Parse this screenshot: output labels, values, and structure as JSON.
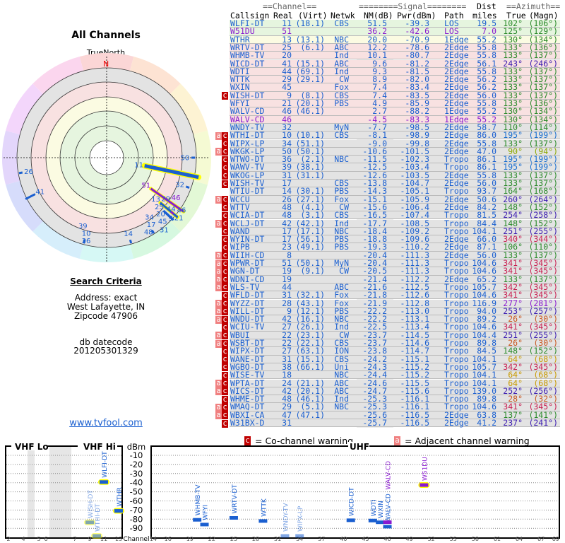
{
  "left": {
    "title": "All Channels",
    "north_label": "TrueNorth",
    "north_marker": "N",
    "criteria_title": "Search Criteria",
    "address": "Address: exact",
    "city": "West Lafayette, IN",
    "zipcode": "Zipcode 47906",
    "db_label": "db datecode",
    "db_value": "201205301329",
    "link": "www.tvfool.com"
  },
  "table": {
    "group_headers": {
      "channel": "==Channel==",
      "signal": "========Signal========",
      "dist": "Dist",
      "azimuth": "==Azimuth=="
    },
    "headers": {
      "callsign": "Callsign",
      "real": "Real",
      "virt": "(Virt)",
      "netwk": "Netwk",
      "nm": "NM(dB)",
      "pwr": "Pwr(dBm)",
      "path": "Path",
      "dist": "miles",
      "true": "True",
      "magn": "(Magn)"
    },
    "colors": {
      "text": "#1a5fd0",
      "analog": "#8a1ad0",
      "green": "#e6f5df",
      "yellow": "#fbfbe2",
      "pink": "#f8e1e1",
      "gray": "#e3e3e3",
      "co_flag": "#c00000",
      "adj_flag": "#f08080"
    },
    "rows": [
      [
        "",
        "WLFI-DT",
        "11",
        "(18.1)",
        "CBS",
        "51.5",
        "-39.3",
        "LOS",
        "19.5",
        "102°",
        "(106°)",
        "green",
        0
      ],
      [
        "",
        "W51DU",
        "51",
        "",
        "",
        "36.2",
        "-42.6",
        "LOS",
        "7.0",
        "125°",
        "(129°)",
        "green",
        1
      ],
      [
        "",
        "WTHR",
        "13",
        "(13.1)",
        "NBC",
        "20.0",
        "-70.9",
        "1Edge",
        "55.2",
        "130°",
        "(134°)",
        "yellow",
        0
      ],
      [
        "",
        "WRTV-DT",
        "25",
        "(6.1)",
        "ABC",
        "12.2",
        "-78.6",
        "2Edge",
        "55.8",
        "133°",
        "(136°)",
        "pink",
        0
      ],
      [
        "",
        "WHMB-TV",
        "20",
        "",
        "Ind",
        "10.1",
        "-80.7",
        "2Edge",
        "55.8",
        "133°",
        "(137°)",
        "pink",
        0
      ],
      [
        "",
        "WICD-DT",
        "41",
        "(15.1)",
        "ABC",
        "9.6",
        "-81.2",
        "2Edge",
        "56.1",
        "243°",
        "(246°)",
        "pink",
        0
      ],
      [
        "",
        "WDTI",
        "44",
        "(69.1)",
        "Ind",
        "9.3",
        "-81.5",
        "2Edge",
        "55.8",
        "133°",
        "(137°)",
        "pink",
        0
      ],
      [
        "",
        "WTTK",
        "29",
        "(29.1)",
        "CW",
        "8.9",
        "-82.0",
        "2Edge",
        "56.2",
        "133°",
        "(137°)",
        "pink",
        0
      ],
      [
        "",
        "WXIN",
        "45",
        "",
        "Fox",
        "7.4",
        "-83.4",
        "2Edge",
        "56.2",
        "133°",
        "(137°)",
        "pink",
        0
      ],
      [
        "c",
        "WISH-DT",
        "9",
        "(8.1)",
        "CBS",
        "7.4",
        "-83.5",
        "2Edge",
        "56.0",
        "133°",
        "(137°)",
        "pink",
        0
      ],
      [
        "",
        "WFYI",
        "21",
        "(20.1)",
        "PBS",
        "4.9",
        "-85.9",
        "2Edge",
        "55.8",
        "133°",
        "(136°)",
        "pink",
        0
      ],
      [
        "",
        "WALV-CD",
        "46",
        "(46.1)",
        "",
        "2.7",
        "-88.2",
        "1Edge",
        "55.2",
        "130°",
        "(134°)",
        "pink",
        0
      ],
      [
        "",
        "WALV-CD",
        "46",
        "",
        "",
        "-4.5",
        "-83.3",
        "1Edge",
        "55.2",
        "130°",
        "(134°)",
        "pink",
        1
      ],
      [
        "",
        "WNDY-TV",
        "32",
        "",
        "MyN",
        "-7.7",
        "-98.5",
        "2Edge",
        "58.7",
        "110°",
        "(114°)",
        "gray",
        0
      ],
      [
        "ac",
        "WTHI-DT",
        "10",
        "(10.1)",
        "CBS",
        "-8.1",
        "-98.9",
        "2Edge",
        "86.0",
        "195°",
        "(199°)",
        "gray",
        0
      ],
      [
        "c",
        "WIPX-LP",
        "34",
        "(51.1)",
        "",
        "-9.0",
        "-99.8",
        "2Edge",
        "55.8",
        "133°",
        "(137°)",
        "gray",
        0
      ],
      [
        "ac",
        "WKGK-LP",
        "50",
        "(50.1)",
        "",
        "-10.6",
        "-101.5",
        "2Edge",
        "47.0",
        "90°",
        "(94°)",
        "gray",
        0
      ],
      [
        "c",
        "WTWO-DT",
        "36",
        "(2.1)",
        "NBC",
        "-11.5",
        "-102.3",
        "Tropo",
        "86.1",
        "195°",
        "(199°)",
        "gray",
        0
      ],
      [
        "c",
        "WAWV-TV",
        "39",
        "(38.1)",
        "",
        "-12.5",
        "-103.4",
        "Tropo",
        "86.1",
        "195°",
        "(199°)",
        "gray",
        0
      ],
      [
        "c",
        "WKOG-LP",
        "31",
        "(31.1)",
        "",
        "-12.6",
        "-103.5",
        "2Edge",
        "55.8",
        "133°",
        "(137°)",
        "gray",
        0
      ],
      [
        "c",
        "WISH-TV",
        "17",
        "",
        "CBS",
        "-13.8",
        "-104.7",
        "2Edge",
        "56.0",
        "133°",
        "(137°)",
        "gray",
        0
      ],
      [
        "",
        "WTIU-DT",
        "14",
        "(30.1)",
        "PBS",
        "-14.3",
        "-105.1",
        "Tropo",
        "93.7",
        "164°",
        "(168°)",
        "gray",
        0
      ],
      [
        "ac",
        "WCCU",
        "26",
        "(27.1)",
        "Fox",
        "-15.1",
        "-105.9",
        "2Edge",
        "50.6",
        "260°",
        "(264°)",
        "gray",
        0
      ],
      [
        "c",
        "WTTV",
        "48",
        "(4.1)",
        "CW",
        "-15.6",
        "-106.4",
        "2Edge",
        "84.2",
        "148°",
        "(152°)",
        "gray",
        0
      ],
      [
        "c",
        "WCIA-DT",
        "48",
        "(3.1)",
        "CBS",
        "-16.5",
        "-107.4",
        "Tropo",
        "81.5",
        "254°",
        "(258°)",
        "gray",
        0
      ],
      [
        "ac",
        "WCLJ-DT",
        "42",
        "(42.1)",
        "Ind",
        "-17.7",
        "-108.5",
        "Tropo",
        "84.4",
        "148°",
        "(152°)",
        "gray",
        0
      ],
      [
        "c",
        "WAND",
        "17",
        "(17.1)",
        "NBC",
        "-18.4",
        "-109.2",
        "Tropo",
        "104.1",
        "251°",
        "(255°)",
        "gray",
        0
      ],
      [
        "c",
        "WYIN-DT",
        "17",
        "(56.1)",
        "PBS",
        "-18.8",
        "-109.6",
        "2Edge",
        "66.0",
        "340°",
        "(344°)",
        "gray",
        0
      ],
      [
        "c",
        "WIPB",
        "23",
        "(49.1)",
        "PBS",
        "-19.3",
        "-110.2",
        "2Edge",
        "87.1",
        "106°",
        "(110°)",
        "gray",
        0
      ],
      [
        "ac",
        "WIIH-CD",
        "8",
        "",
        "",
        "-20.4",
        "-111.3",
        "2Edge",
        "56.0",
        "133°",
        "(137°)",
        "gray",
        0
      ],
      [
        "ac",
        "WPWR-DT",
        "51",
        "(50.1)",
        "MyN",
        "-20.4",
        "-111.3",
        "Tropo",
        "104.6",
        "341°",
        "(345°)",
        "gray",
        0
      ],
      [
        "ac",
        "WGN-DT",
        "19",
        "(9.1)",
        "CW",
        "-20.5",
        "-111.3",
        "Tropo",
        "104.6",
        "341°",
        "(345°)",
        "gray",
        0
      ],
      [
        "ac",
        "WDNI-CD",
        "19",
        "",
        "",
        "-21.4",
        "-112.2",
        "2Edge",
        "65.2",
        "133°",
        "(137°)",
        "gray",
        0
      ],
      [
        "ac",
        "WLS-TV",
        "44",
        "",
        "ABC",
        "-21.6",
        "-112.5",
        "Tropo",
        "105.7",
        "342°",
        "(345°)",
        "gray",
        0
      ],
      [
        "c",
        "WFLD-DT",
        "31",
        "(32.1)",
        "Fox",
        "-21.8",
        "-112.6",
        "Tropo",
        "104.6",
        "341°",
        "(345°)",
        "gray",
        0
      ],
      [
        "ac",
        "WYZZ-DT",
        "28",
        "(43.1)",
        "Fox",
        "-21.9",
        "-112.8",
        "Tropo",
        "116.9",
        "277°",
        "(281°)",
        "gray",
        0
      ],
      [
        "ac",
        "WILL-DT",
        "9",
        "(12.1)",
        "PBS",
        "-22.2",
        "-113.0",
        "Tropo",
        "94.0",
        "253°",
        "(257°)",
        "gray",
        0
      ],
      [
        "ac",
        "WNDU-DT",
        "42",
        "(16.1)",
        "NBC",
        "-22.2",
        "-113.1",
        "Tropo",
        "89.2",
        "26°",
        "(30°)",
        "gray",
        0
      ],
      [
        "c",
        "WCIU-TV",
        "27",
        "(26.1)",
        "Ind",
        "-22.5",
        "-113.4",
        "Tropo",
        "104.6",
        "341°",
        "(345°)",
        "gray",
        0
      ],
      [
        "ac",
        "WBUI",
        "22",
        "(23.1)",
        "CW",
        "-23.7",
        "-114.5",
        "Tropo",
        "104.4",
        "251°",
        "(255°)",
        "gray",
        0
      ],
      [
        "ac",
        "WSBT-DT",
        "22",
        "(22.1)",
        "CBS",
        "-23.7",
        "-114.6",
        "Tropo",
        "89.8",
        "26°",
        "(30°)",
        "gray",
        0
      ],
      [
        "c",
        "WIPX-DT",
        "27",
        "(63.1)",
        "ION",
        "-23.8",
        "-114.7",
        "Tropo",
        "84.5",
        "148°",
        "(152°)",
        "gray",
        0
      ],
      [
        "c",
        "WANE-DT",
        "31",
        "(15.1)",
        "CBS",
        "-24.2",
        "-115.1",
        "Tropo",
        "104.1",
        "64°",
        "(68°)",
        "gray",
        0
      ],
      [
        "c",
        "WGBO-DT",
        "38",
        "(66.1)",
        "Uni",
        "-24.3",
        "-115.2",
        "Tropo",
        "105.7",
        "342°",
        "(345°)",
        "gray",
        0
      ],
      [
        "c",
        "WISE-TV",
        "18",
        "",
        "NBC",
        "-24.4",
        "-115.2",
        "Tropo",
        "104.1",
        "64°",
        "(68°)",
        "gray",
        0
      ],
      [
        "ac",
        "WPTA-DT",
        "24",
        "(21.1)",
        "ABC",
        "-24.6",
        "-115.5",
        "Tropo",
        "104.1",
        "64°",
        "(68°)",
        "gray",
        0
      ],
      [
        "ac",
        "WICS-DT",
        "42",
        "(20.1)",
        "ABC",
        "-24.7",
        "-115.6",
        "Tropo",
        "139.0",
        "252°",
        "(256°)",
        "gray",
        0
      ],
      [
        "c",
        "WHME-DT",
        "48",
        "(46.1)",
        "Ind",
        "-25.3",
        "-116.1",
        "Tropo",
        "89.8",
        "28°",
        "(32°)",
        "gray",
        0
      ],
      [
        "ac",
        "WMAQ-DT",
        "29",
        "(5.1)",
        "NBC",
        "-25.3",
        "-116.1",
        "Tropo",
        "104.6",
        "341°",
        "(345°)",
        "gray",
        0
      ],
      [
        "ac",
        "WBXI-CA",
        "47",
        "(47.1)",
        "",
        "-25.6",
        "-116.5",
        "2Edge",
        "63.8",
        "137°",
        "(141°)",
        "gray",
        0
      ],
      [
        "c",
        "W31BX-D",
        "31",
        "",
        "",
        "-25.7",
        "-116.5",
        "2Edge",
        "41.2",
        "237°",
        "(241°)",
        "gray",
        0
      ]
    ]
  },
  "legend": {
    "co_icon": "c",
    "co_text": "= Co-channel warning",
    "adj_icon": "a",
    "adj_text": "= Adjacent channel warning"
  },
  "spectrum": {
    "vhf_lo": "VHF Lo",
    "vhf_hi": "VHF Hi",
    "uhf": "UHF",
    "unit": "dBm",
    "channel_label": "Channel",
    "dbm_ticks": [
      "-10",
      "-20",
      "-30",
      "-40",
      "-50",
      "-60",
      "-70",
      "-80",
      "-90"
    ],
    "vhf_ticks": [
      "2",
      "4",
      "5",
      "6",
      "7",
      "9",
      "11",
      "13"
    ],
    "uhf_ticks": [
      "14",
      "16",
      "19",
      "22",
      "25",
      "28",
      "31",
      "34",
      "37",
      "40",
      "43",
      "46",
      "49",
      "52",
      "55",
      "58",
      "61",
      "64",
      "67",
      "69"
    ]
  }
}
